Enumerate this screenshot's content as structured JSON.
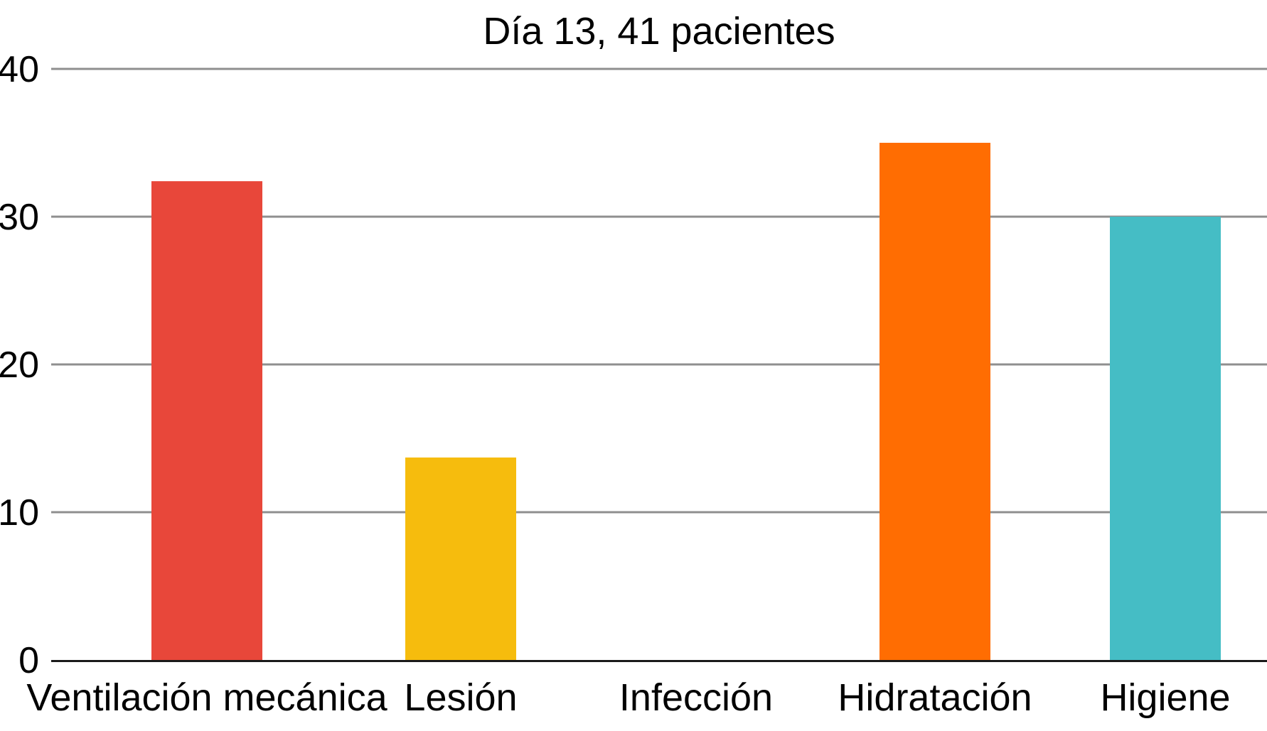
{
  "chart_data": {
    "type": "bar",
    "title": "Día 13, 41 pacientes",
    "xlabel": "",
    "ylabel": "",
    "categories": [
      "Ventilación mecánica",
      "Lesión",
      "Infección",
      "Hidratación",
      "Higiene"
    ],
    "values": [
      32.4,
      13.7,
      0,
      35,
      30
    ],
    "colors": [
      "#e8473a",
      "#f6bc0d",
      "#ffffff",
      "#ff6d02",
      "#45bdc5"
    ],
    "ylim": [
      0,
      40
    ],
    "yticks": [
      0,
      10,
      20,
      30,
      40
    ],
    "ytick_labels": [
      "0",
      "10",
      "20",
      "30",
      "40"
    ],
    "grid": true,
    "gridline_color": "#8f8f8f",
    "axis_color": "#1a1a1a",
    "legend": "none"
  }
}
